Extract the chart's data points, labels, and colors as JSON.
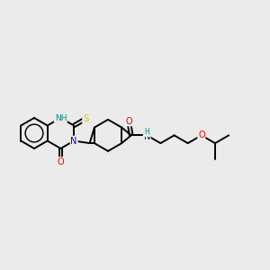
{
  "bg_color": "#ebebeb",
  "atom_colors": {
    "C": "#000000",
    "N": "#0000cc",
    "O": "#ff0000",
    "S": "#cccc00",
    "H": "#008888"
  },
  "figsize": [
    3.0,
    3.0
  ],
  "dpi": 100
}
